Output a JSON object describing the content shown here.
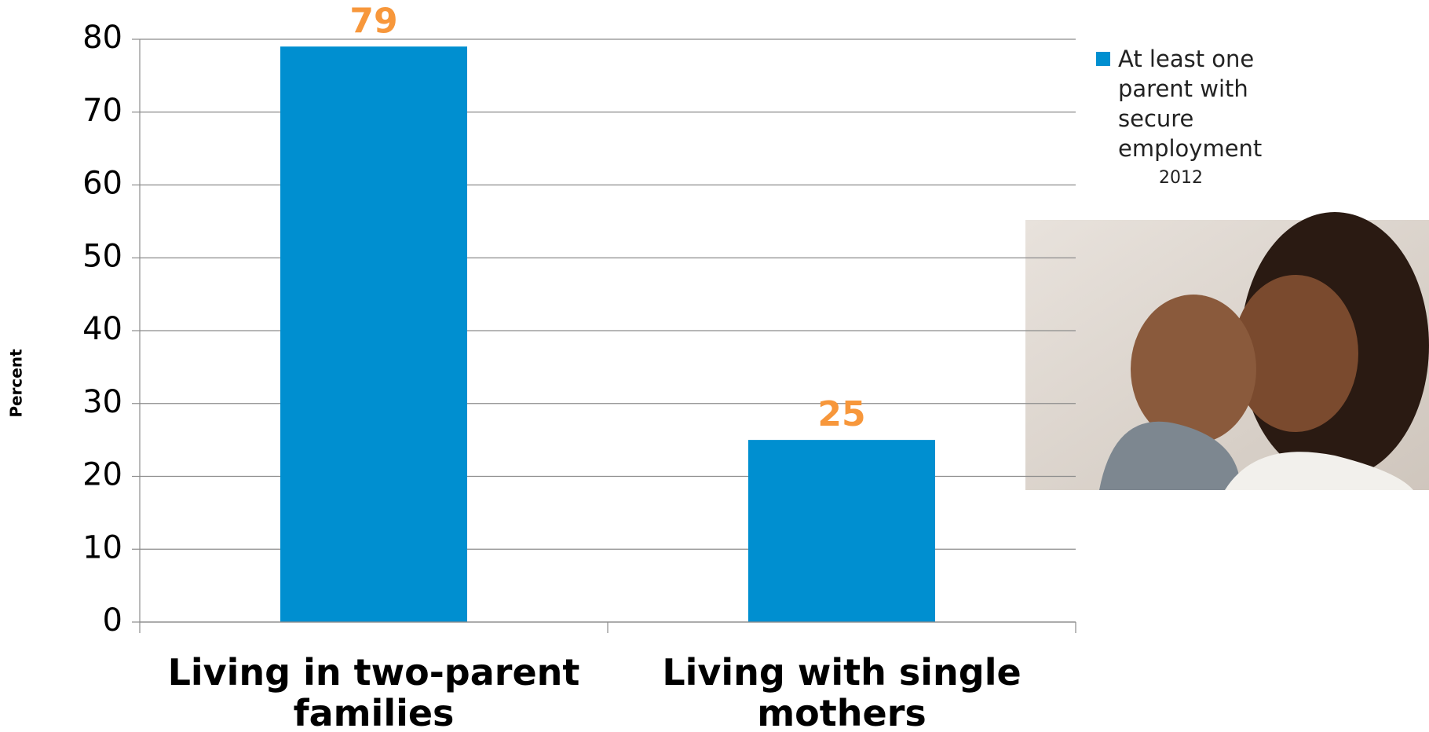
{
  "chart_data": {
    "type": "bar",
    "y_label": "Percent",
    "categories": [
      "Living in two-parent families",
      "Living with single mothers"
    ],
    "series": [
      {
        "name": "At least one parent with secure employment",
        "color": "#008fd0",
        "values": [
          79,
          25
        ]
      }
    ],
    "value_label_color": "#f7973b",
    "annotation": "2012",
    "ylim": [
      0,
      80
    ],
    "yticks": [
      0,
      10,
      20,
      30,
      40,
      50,
      60,
      70,
      80
    ],
    "grid": true,
    "legend": "right"
  }
}
